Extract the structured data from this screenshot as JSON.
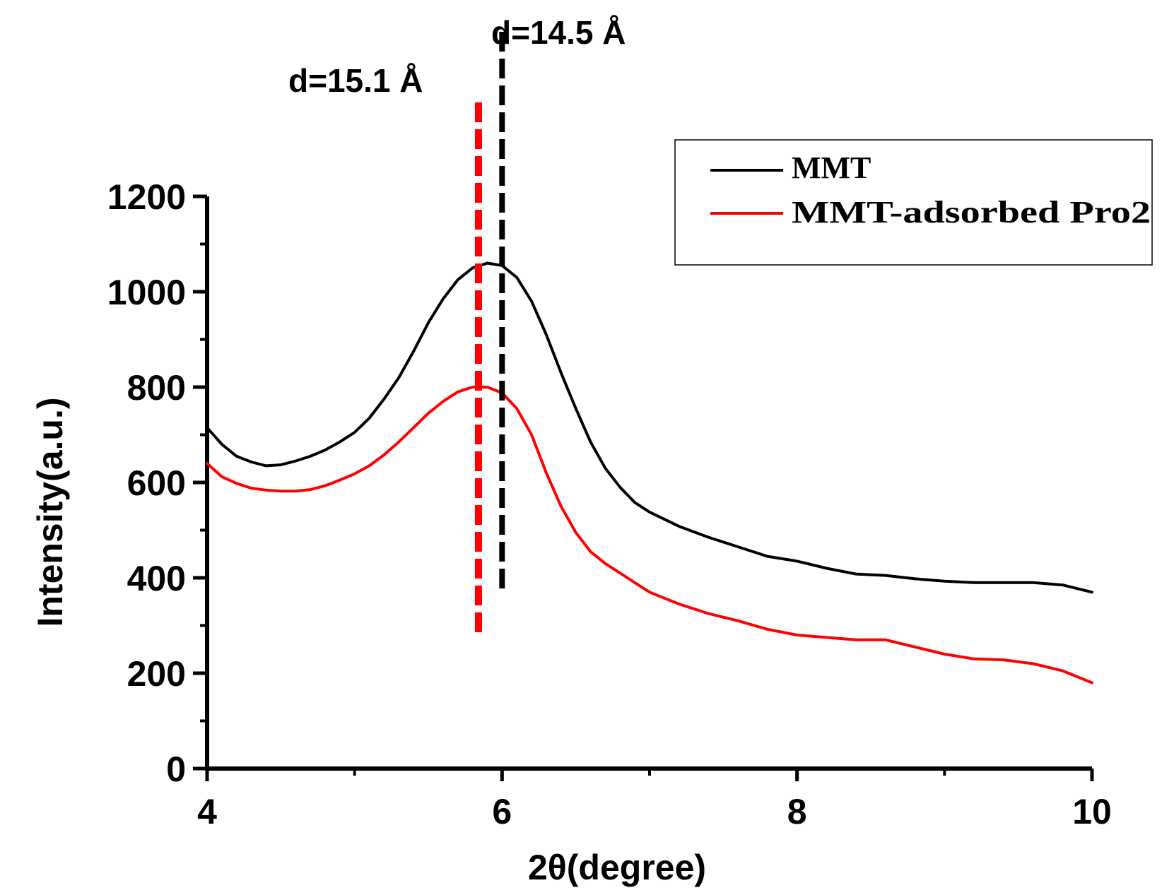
{
  "chart_data": {
    "type": "line",
    "title": "",
    "xlabel": "2θ(degree)",
    "ylabel": "Intensity(a.u.)",
    "xlim": [
      4,
      10
    ],
    "ylim": [
      0,
      1200
    ],
    "xticks": [
      4,
      6,
      8,
      10
    ],
    "yticks": [
      0,
      200,
      400,
      600,
      800,
      1000,
      1200
    ],
    "grid": false,
    "legend_position": "top-right",
    "series": [
      {
        "name": "MMT",
        "color": "#000000",
        "x": [
          4.0,
          4.1,
          4.2,
          4.3,
          4.4,
          4.5,
          4.6,
          4.7,
          4.8,
          4.9,
          5.0,
          5.1,
          5.2,
          5.3,
          5.4,
          5.5,
          5.6,
          5.7,
          5.8,
          5.9,
          6.0,
          6.1,
          6.2,
          6.3,
          6.4,
          6.5,
          6.6,
          6.7,
          6.8,
          6.9,
          7.0,
          7.2,
          7.4,
          7.6,
          7.8,
          8.0,
          8.2,
          8.4,
          8.6,
          8.8,
          9.0,
          9.2,
          9.4,
          9.6,
          9.8,
          10.0
        ],
        "values": [
          715,
          680,
          655,
          643,
          635,
          637,
          645,
          655,
          668,
          685,
          705,
          735,
          775,
          820,
          875,
          935,
          985,
          1025,
          1050,
          1060,
          1055,
          1030,
          980,
          910,
          830,
          755,
          685,
          630,
          590,
          558,
          538,
          508,
          485,
          465,
          445,
          435,
          420,
          408,
          405,
          398,
          393,
          390,
          390,
          390,
          385,
          370
        ]
      },
      {
        "name": "MMT-adsorbed Pro2",
        "color": "#ff0000",
        "x": [
          4.0,
          4.1,
          4.2,
          4.3,
          4.4,
          4.5,
          4.6,
          4.7,
          4.8,
          4.9,
          5.0,
          5.1,
          5.2,
          5.3,
          5.4,
          5.5,
          5.6,
          5.7,
          5.8,
          5.9,
          6.0,
          6.1,
          6.2,
          6.3,
          6.4,
          6.5,
          6.6,
          6.7,
          6.8,
          6.9,
          7.0,
          7.2,
          7.4,
          7.6,
          7.8,
          8.0,
          8.2,
          8.4,
          8.6,
          8.8,
          9.0,
          9.2,
          9.4,
          9.6,
          9.8,
          10.0
        ],
        "values": [
          640,
          612,
          598,
          588,
          584,
          582,
          582,
          585,
          593,
          605,
          618,
          635,
          658,
          685,
          715,
          745,
          770,
          790,
          800,
          800,
          788,
          755,
          700,
          620,
          550,
          495,
          455,
          430,
          410,
          390,
          370,
          345,
          325,
          310,
          292,
          280,
          275,
          270,
          270,
          255,
          240,
          230,
          228,
          220,
          205,
          180
        ]
      }
    ],
    "annotations": [
      {
        "text": "d=14.5 Å",
        "x": 6.0,
        "color": "#000000",
        "y_bottom": 365
      },
      {
        "text": "d=15.1 Å",
        "x": 5.84,
        "color": "#ff0000",
        "y_bottom": 275
      }
    ]
  }
}
